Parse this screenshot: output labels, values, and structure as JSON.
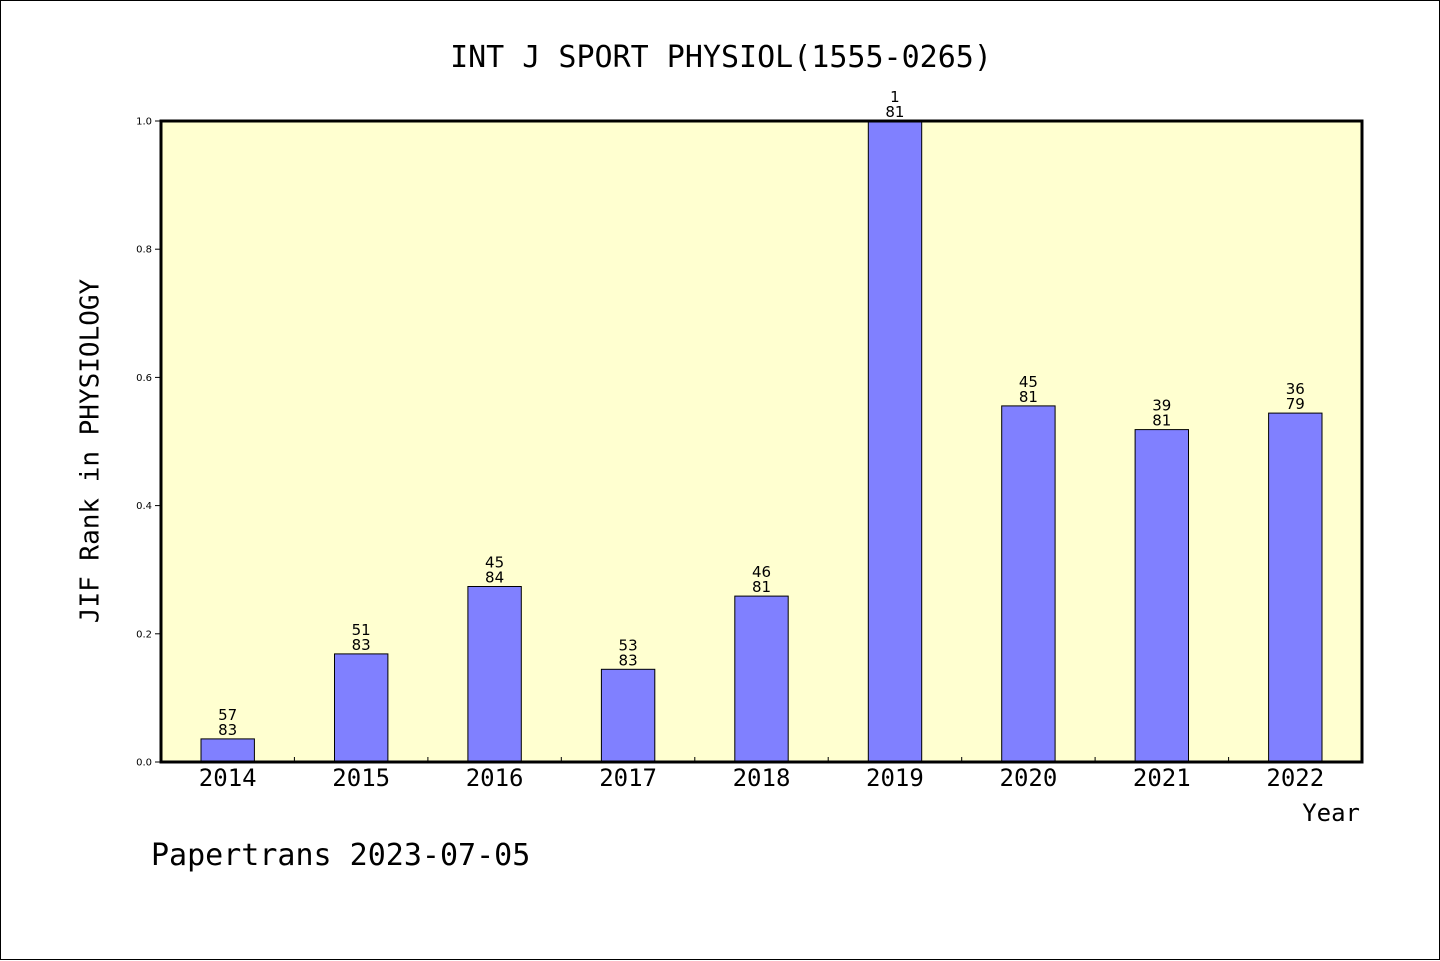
{
  "chart_data": {
    "type": "bar",
    "title": "INT J SPORT PHYSIOL(1555-0265)",
    "xlabel": "Year",
    "ylabel": "JIF Rank in PHYSIOLOGY",
    "categories": [
      "2014",
      "2015",
      "2016",
      "2017",
      "2018",
      "2019",
      "2020",
      "2021",
      "2022"
    ],
    "values": [
      0.0361,
      0.1687,
      0.2738,
      0.1446,
      0.2588,
      1.0,
      0.5556,
      0.5185,
      0.5443
    ],
    "bar_labels": [
      {
        "rank": "57",
        "total": "83"
      },
      {
        "rank": "51",
        "total": "83"
      },
      {
        "rank": "45",
        "total": "84"
      },
      {
        "rank": "53",
        "total": "83"
      },
      {
        "rank": "46",
        "total": "81"
      },
      {
        "rank": "1",
        "total": "81"
      },
      {
        "rank": "45",
        "total": "81"
      },
      {
        "rank": "39",
        "total": "81"
      },
      {
        "rank": "36",
        "total": "79"
      }
    ],
    "yticks": [
      "0.0",
      "0.2",
      "0.4",
      "0.6",
      "0.8",
      "1.0"
    ],
    "ylim": [
      0,
      1.0
    ],
    "grid": false,
    "colors": {
      "plot_background": "#ffffd0",
      "bar_fill": "#8080ff",
      "bar_stroke": "#000000"
    }
  },
  "footer": {
    "text": "Papertrans 2023-07-05"
  }
}
